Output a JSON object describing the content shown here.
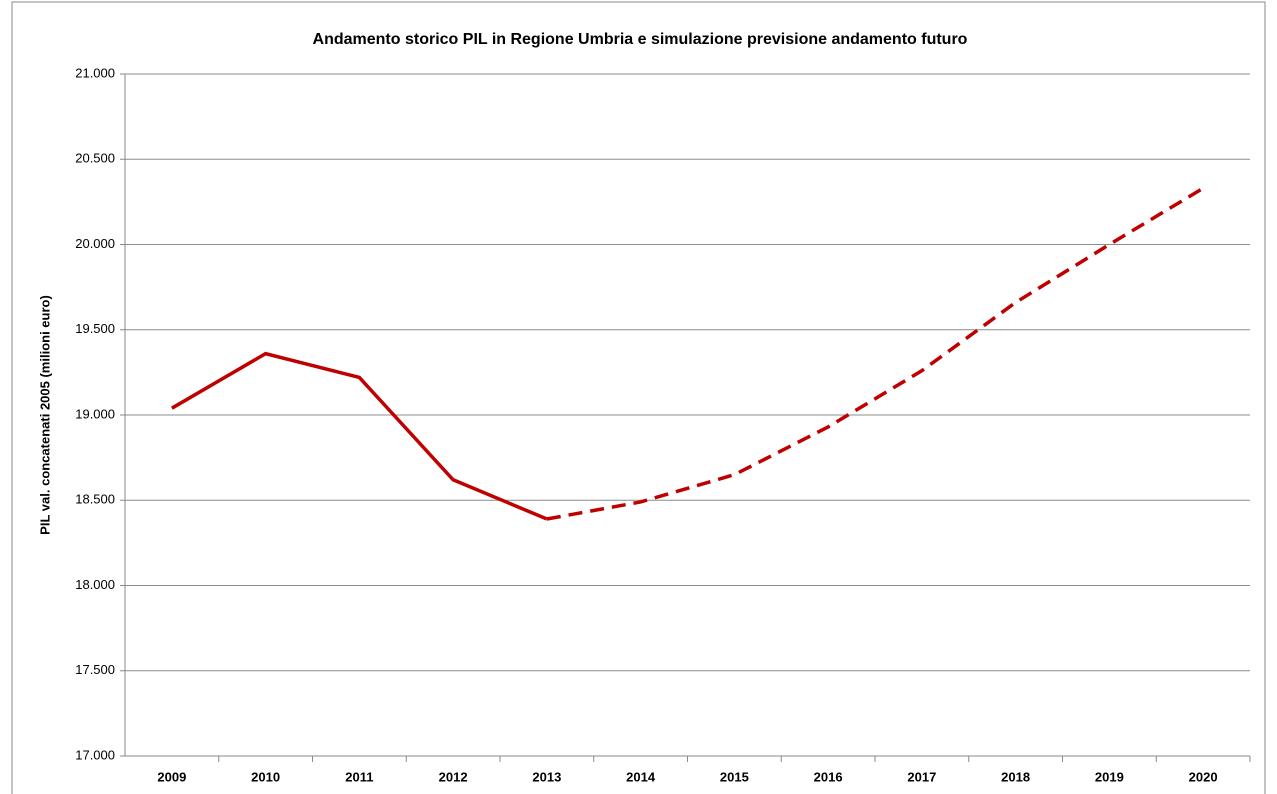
{
  "chart_data": {
    "type": "line",
    "title": "Andamento storico PIL in Regione Umbria e simulazione previsione andamento futuro",
    "y_label": "PIL val. concatenati 2005 (milioni euro)",
    "categories": [
      "2009",
      "2010",
      "2011",
      "2012",
      "2013",
      "2014",
      "2015",
      "2016",
      "2017",
      "2018",
      "2019",
      "2020"
    ],
    "series": [
      {
        "color": "#c00000",
        "dashed": false,
        "values": [
          19040,
          19360,
          19220,
          18620,
          18390,
          null,
          null,
          null,
          null,
          null,
          null,
          null
        ]
      },
      {
        "color": "#c00000",
        "dashed": true,
        "values": [
          null,
          null,
          null,
          null,
          18390,
          18490,
          18650,
          18930,
          19260,
          19660,
          20000,
          20330
        ]
      }
    ],
    "ylim": [
      17000,
      21000
    ],
    "yticks": [
      {
        "value": 17000,
        "label": "17.000"
      },
      {
        "value": 17500,
        "label": "17.500"
      },
      {
        "value": 18000,
        "label": "18.000"
      },
      {
        "value": 18500,
        "label": "18.500"
      },
      {
        "value": 19000,
        "label": "19.000"
      },
      {
        "value": 19500,
        "label": "19.500"
      },
      {
        "value": 20000,
        "label": "20.000"
      },
      {
        "value": 20500,
        "label": "20.500"
      },
      {
        "value": 21000,
        "label": "21.000"
      }
    ],
    "grid": true
  }
}
